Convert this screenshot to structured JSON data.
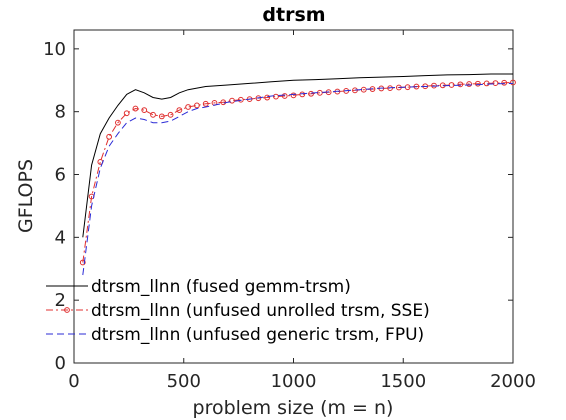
{
  "chart_data": {
    "type": "line",
    "title": "dtrsm",
    "xlabel": "problem size (m = n)",
    "ylabel": "GFLOPS",
    "xlim": [
      0,
      2000
    ],
    "ylim": [
      0,
      10.6
    ],
    "xticks": [
      0,
      500,
      1000,
      1500,
      2000
    ],
    "yticks": [
      0,
      2,
      4,
      6,
      8,
      10
    ],
    "grid": false,
    "legend_position": "bottom-left",
    "series": [
      {
        "name": "dtrsm_llnn (fused gemm-trsm)",
        "color": "#000000",
        "style": "solid",
        "marker": "none",
        "x": [
          40,
          80,
          120,
          160,
          200,
          240,
          280,
          320,
          360,
          400,
          440,
          480,
          520,
          560,
          600,
          700,
          800,
          900,
          1000,
          1100,
          1200,
          1300,
          1400,
          1500,
          1600,
          1700,
          1800,
          1900,
          2000
        ],
        "y": [
          4.0,
          6.3,
          7.3,
          7.8,
          8.2,
          8.55,
          8.7,
          8.6,
          8.45,
          8.4,
          8.45,
          8.6,
          8.7,
          8.75,
          8.8,
          8.85,
          8.9,
          8.95,
          9.0,
          9.02,
          9.05,
          9.08,
          9.1,
          9.12,
          9.15,
          9.17,
          9.18,
          9.2,
          9.2
        ]
      },
      {
        "name": "dtrsm_llnn (unfused unrolled trsm, SSE)",
        "color": "#e03030",
        "style": "dashdot",
        "marker": "circle",
        "x": [
          40,
          80,
          120,
          160,
          200,
          240,
          280,
          320,
          360,
          400,
          440,
          480,
          520,
          560,
          600,
          640,
          680,
          720,
          760,
          800,
          840,
          880,
          920,
          960,
          1000,
          1040,
          1080,
          1120,
          1160,
          1200,
          1240,
          1280,
          1320,
          1360,
          1400,
          1440,
          1480,
          1520,
          1560,
          1600,
          1640,
          1680,
          1720,
          1760,
          1800,
          1840,
          1880,
          1920,
          1960,
          2000
        ],
        "y": [
          3.2,
          5.3,
          6.4,
          7.2,
          7.65,
          7.95,
          8.1,
          8.05,
          7.9,
          7.85,
          7.9,
          8.05,
          8.15,
          8.2,
          8.25,
          8.28,
          8.3,
          8.35,
          8.38,
          8.4,
          8.43,
          8.45,
          8.48,
          8.5,
          8.52,
          8.55,
          8.57,
          8.6,
          8.62,
          8.64,
          8.66,
          8.68,
          8.7,
          8.72,
          8.74,
          8.75,
          8.77,
          8.78,
          8.8,
          8.81,
          8.83,
          8.84,
          8.85,
          8.87,
          8.88,
          8.89,
          8.9,
          8.91,
          8.92,
          8.93
        ]
      },
      {
        "name": "dtrsm_llnn (unfused generic trsm, FPU)",
        "color": "#2b2bd6",
        "style": "dashed",
        "marker": "none",
        "x": [
          40,
          80,
          120,
          160,
          200,
          240,
          280,
          320,
          360,
          400,
          440,
          480,
          520,
          560,
          600,
          700,
          800,
          900,
          1000,
          1100,
          1200,
          1300,
          1400,
          1500,
          1600,
          1700,
          1800,
          1900,
          2000
        ],
        "y": [
          2.8,
          5.0,
          6.2,
          6.9,
          7.3,
          7.65,
          7.8,
          7.75,
          7.65,
          7.65,
          7.7,
          7.85,
          8.0,
          8.1,
          8.15,
          8.3,
          8.4,
          8.5,
          8.55,
          8.6,
          8.65,
          8.7,
          8.75,
          8.78,
          8.8,
          8.83,
          8.85,
          8.88,
          8.9
        ]
      }
    ]
  }
}
